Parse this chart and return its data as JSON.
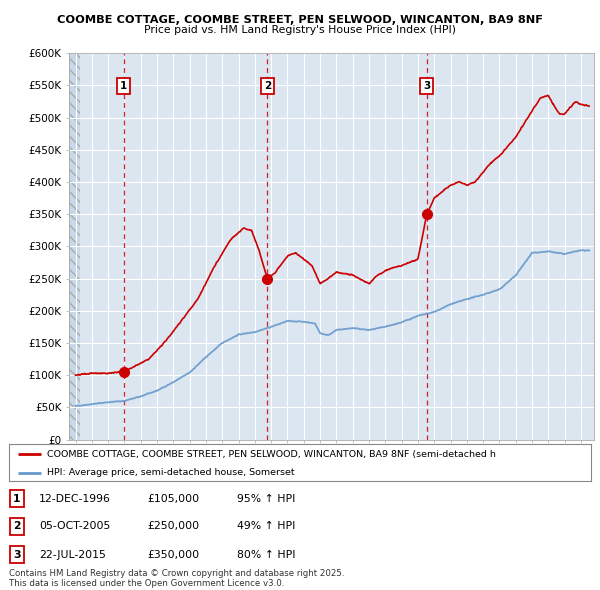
{
  "title1": "COOMBE COTTAGE, COOMBE STREET, PEN SELWOOD, WINCANTON, BA9 8NF",
  "title2": "Price paid vs. HM Land Registry's House Price Index (HPI)",
  "ylabel_ticks": [
    "£0",
    "£50K",
    "£100K",
    "£150K",
    "£200K",
    "£250K",
    "£300K",
    "£350K",
    "£400K",
    "£450K",
    "£500K",
    "£550K",
    "£600K"
  ],
  "ylim": [
    0,
    600000
  ],
  "xlim_start": 1993.6,
  "xlim_end": 2025.8,
  "sale_dates": [
    1996.95,
    2005.76,
    2015.55
  ],
  "sale_prices": [
    105000,
    250000,
    350000
  ],
  "sale_labels": [
    "1",
    "2",
    "3"
  ],
  "sale_date_strs": [
    "12-DEC-1996",
    "05-OCT-2005",
    "22-JUL-2015"
  ],
  "sale_price_strs": [
    "£105,000",
    "£250,000",
    "£350,000"
  ],
  "sale_hpi_strs": [
    "95% ↑ HPI",
    "49% ↑ HPI",
    "80% ↑ HPI"
  ],
  "red_color": "#cc0000",
  "blue_color": "#6699cc",
  "background_color": "#dce6f1",
  "grid_color": "#aabbcc",
  "hatch_left_color": "#c8d8e8",
  "legend_label_red": "COOMBE COTTAGE, COOMBE STREET, PEN SELWOOD, WINCANTON, BA9 8NF (semi-detached h",
  "legend_label_blue": "HPI: Average price, semi-detached house, Somerset",
  "footer_text": "Contains HM Land Registry data © Crown copyright and database right 2025.\nThis data is licensed under the Open Government Licence v3.0."
}
